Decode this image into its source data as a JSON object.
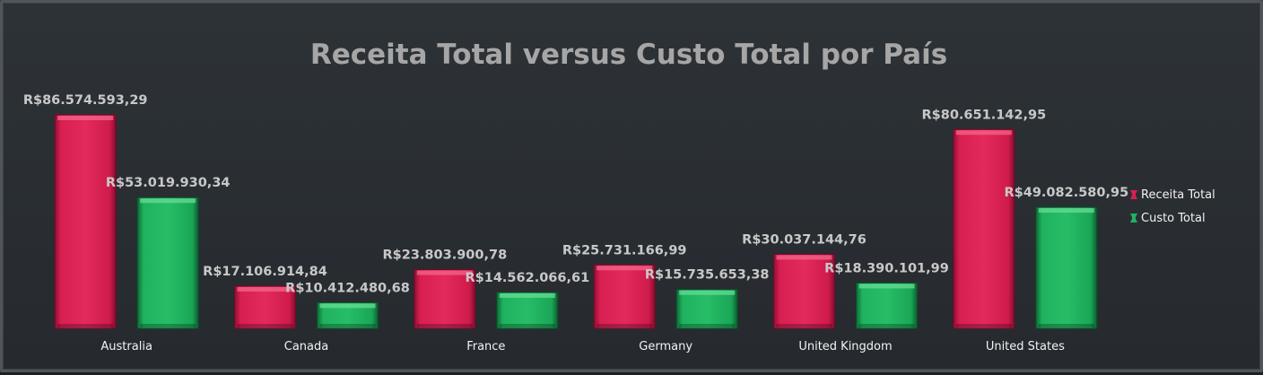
{
  "chart_data": {
    "type": "bar",
    "title": "Receita Total versus Custo Total por País",
    "xlabel": "",
    "ylabel": "",
    "ylim": [
      0,
      100000000
    ],
    "grid": false,
    "legend_position": "right",
    "categories": [
      "Australia",
      "Canada",
      "France",
      "Germany",
      "United Kingdom",
      "United States"
    ],
    "series": [
      {
        "name": "Receita Total",
        "color": "#d81f52",
        "values": [
          86574593.29,
          17106914.84,
          23803900.78,
          25731166.99,
          30037144.76,
          80651142.95
        ],
        "labels": [
          "R$86.574.593,29",
          "R$17.106.914,84",
          "R$23.803.900,78",
          "R$25.731.166,99",
          "R$30.037.144,76",
          "R$80.651.142,95"
        ]
      },
      {
        "name": "Custo Total",
        "color": "#1fb25f",
        "values": [
          53019930.34,
          10412480.68,
          14562066.61,
          15735653.38,
          18390101.99,
          49082580.95
        ],
        "labels": [
          "R$53.019.930,34",
          "R$10.412.480,68",
          "R$14.562.066,61",
          "R$15.735.653,38",
          "R$18.390.101,99",
          "R$49.082.580,95"
        ]
      }
    ]
  }
}
